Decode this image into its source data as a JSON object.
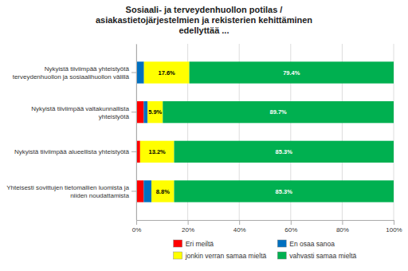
{
  "chart_data": {
    "type": "bar",
    "orientation": "horizontal",
    "stacked": true,
    "title": "Sosiaali- ja terveydenhuollon potilas /\nasiakastietojärjestelmien ja rekisterien kehittäminen\nedellyttää ...",
    "categories": [
      "Nykyistä tiiviimpää yhteistyötä\nterveydenhuollon ja sosiaalihuollon välillä",
      "Nykyistä tiiviimpää valtakunnallista\nyhteistyötä",
      "Nykyistä tiiviimpää alueellista yhteistyötä",
      "Yhteisesti sovittujen tietomallien luomista ja\nniiden noudattamista"
    ],
    "series": [
      {
        "name": "Eri meiltä",
        "color": "#FF0000",
        "values": [
          0.0,
          2.9,
          1.5,
          2.9
        ]
      },
      {
        "name": "En osaa sanoa",
        "color": "#0070C0",
        "values": [
          3.0,
          1.5,
          0.0,
          3.0
        ]
      },
      {
        "name": "jonkin verran samaa mieltä",
        "color": "#FFFF00",
        "values": [
          17.6,
          5.9,
          13.2,
          8.8
        ],
        "value_labels": [
          "17.6%",
          "5.9%",
          "13.2%",
          "8.8%"
        ]
      },
      {
        "name": "vahvasti samaa mieltä",
        "color": "#00B050",
        "values": [
          79.4,
          89.7,
          85.3,
          85.3
        ],
        "value_labels": [
          "79.4%",
          "89.7%",
          "85.3%",
          "85.3%"
        ]
      }
    ],
    "data_labels": true,
    "xlim": [
      0,
      100
    ],
    "xticks": [
      {
        "value": 0,
        "label": "0%"
      },
      {
        "value": 20,
        "label": "20%"
      },
      {
        "value": 40,
        "label": "40%"
      },
      {
        "value": 60,
        "label": "60%"
      },
      {
        "value": 80,
        "label": "80%"
      },
      {
        "value": 100,
        "label": "100%"
      }
    ],
    "grid": true,
    "legend": "bottom"
  }
}
